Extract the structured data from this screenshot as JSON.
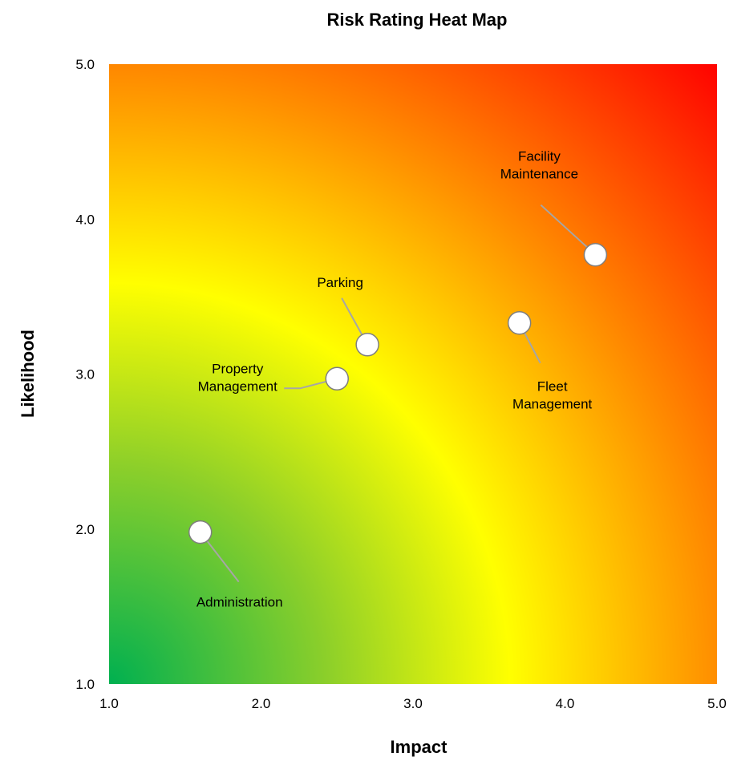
{
  "chart_data": {
    "type": "scatter",
    "title": "Risk Rating Heat Map",
    "xlabel": "Impact",
    "ylabel": "Likelihood",
    "xlim": [
      1.0,
      5.0
    ],
    "ylim": [
      1.0,
      5.0
    ],
    "x_ticks": [
      "1.0",
      "2.0",
      "3.0",
      "4.0",
      "5.0"
    ],
    "y_ticks": [
      "1.0",
      "2.0",
      "3.0",
      "4.0",
      "5.0"
    ],
    "grid": false,
    "background": "heat gradient: green at low impact/likelihood, yellow band in the middle, red at high impact/likelihood",
    "gradient_colors": {
      "low": "#00b050",
      "mid": "#ffff00",
      "high": "#ff0000",
      "between_mid_high": "#ff8c00"
    },
    "points": [
      {
        "label_lines": [
          "Facility",
          "Maintenance"
        ],
        "x": 4.2,
        "y": 3.77
      },
      {
        "label_lines": [
          "Parking"
        ],
        "x": 2.7,
        "y": 3.19
      },
      {
        "label_lines": [
          "Fleet",
          "Management"
        ],
        "x": 3.7,
        "y": 3.33
      },
      {
        "label_lines": [
          "Property",
          "Management"
        ],
        "x": 2.5,
        "y": 2.97
      },
      {
        "label_lines": [
          "Administration"
        ],
        "x": 1.6,
        "y": 1.98
      }
    ],
    "marker": {
      "fill": "#ffffff",
      "stroke": "#7f7f7f"
    },
    "leader_line_color": "#a6a6a6"
  }
}
